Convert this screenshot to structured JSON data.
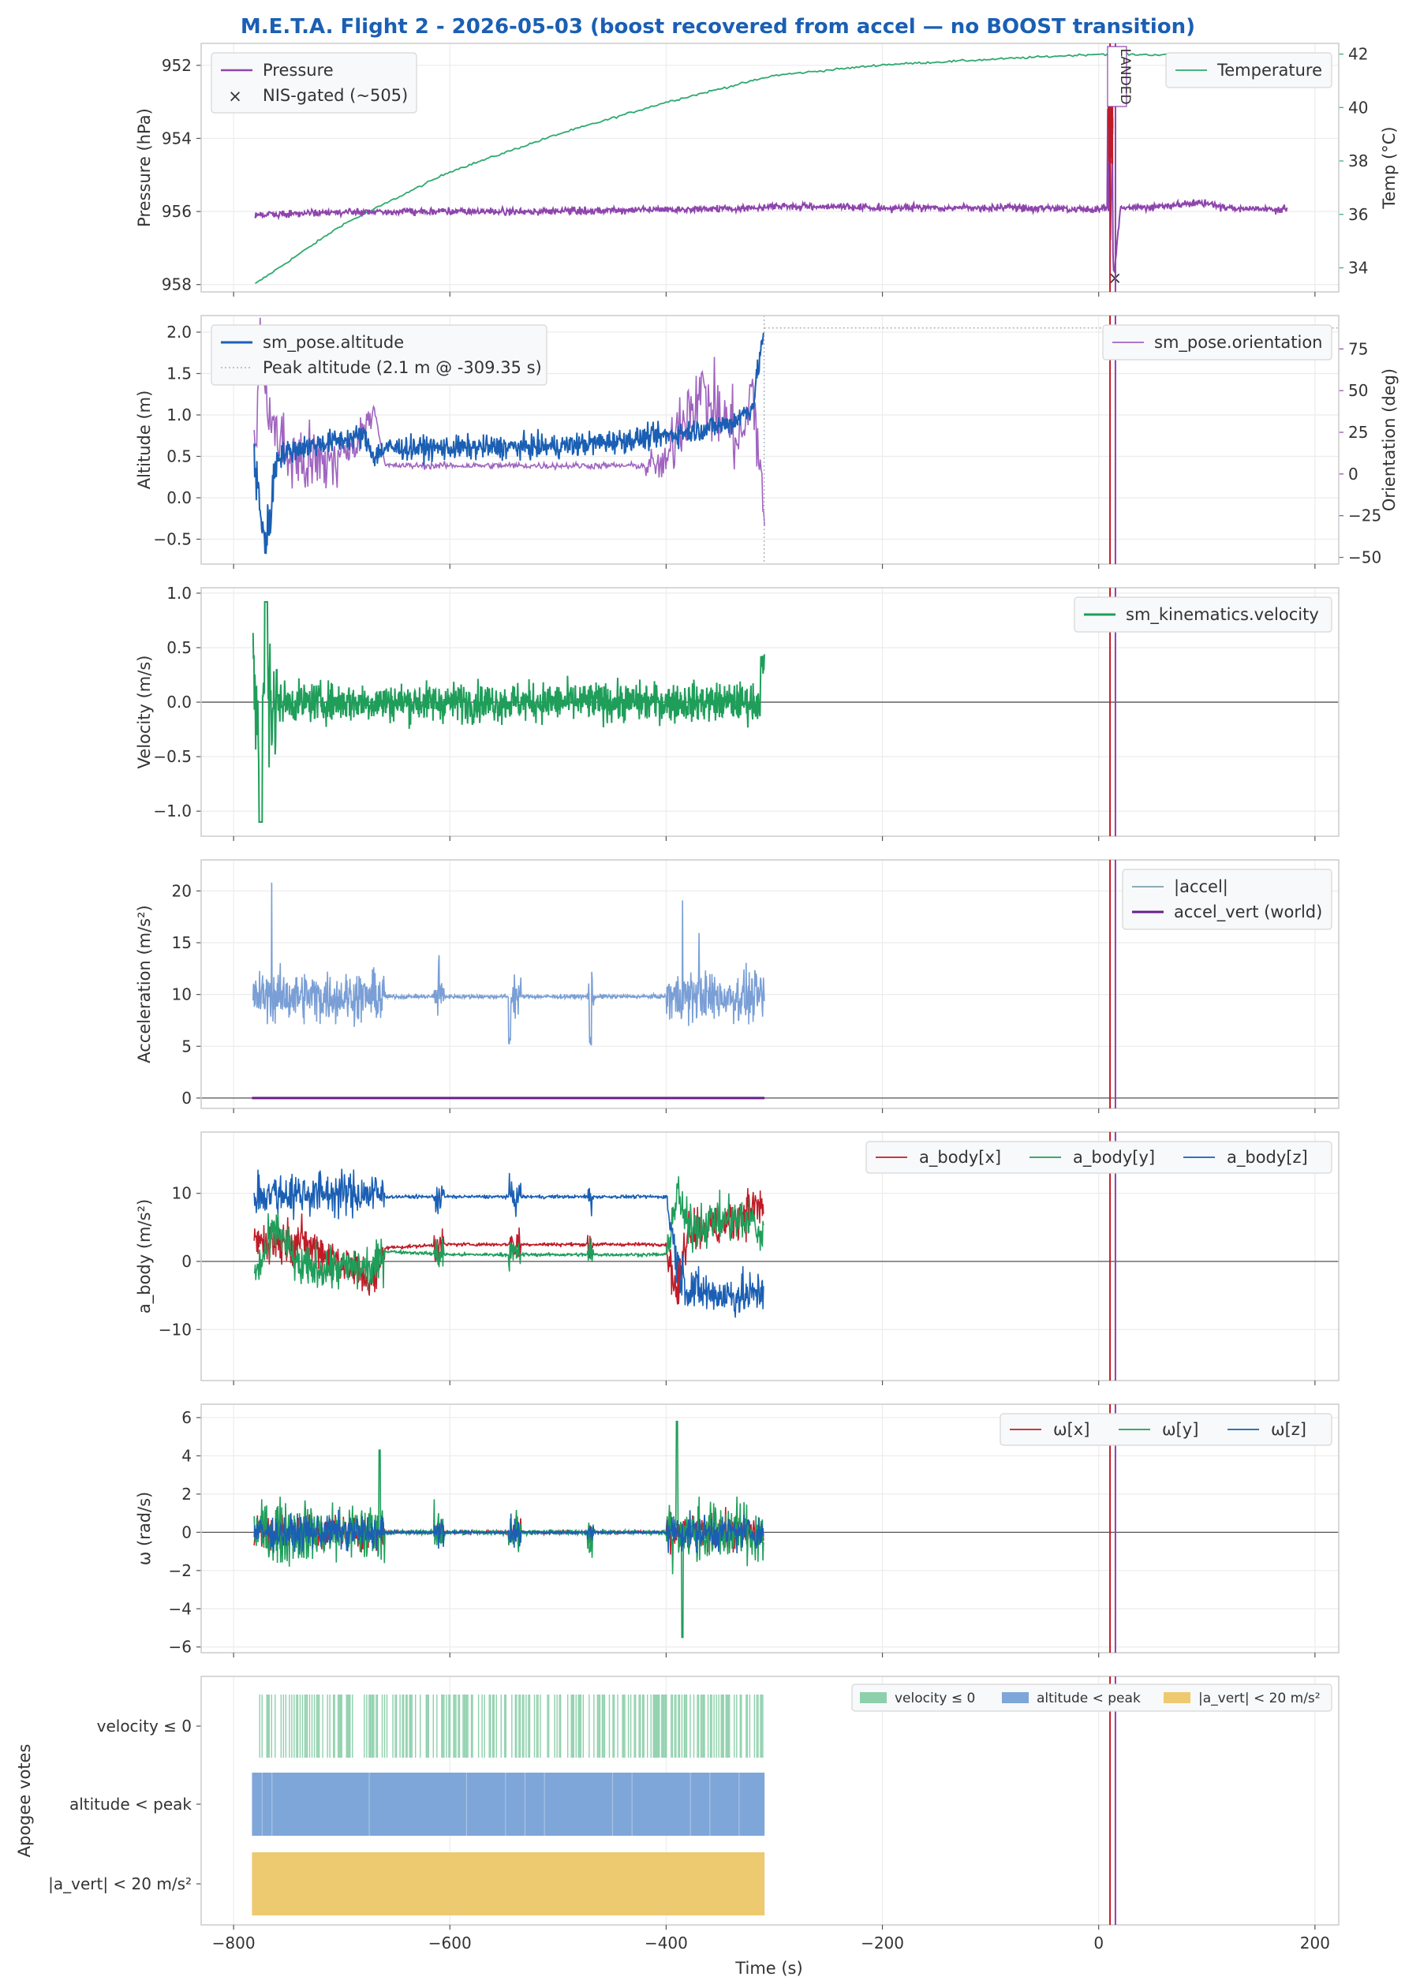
{
  "title": "M.E.T.A. Flight 2 - 2026-05-03  (boost recovered from accel — no BOOST transition)",
  "title_color": "#1a5fb4",
  "x_axis": {
    "label": "Time (s)",
    "range": [
      -830,
      222
    ],
    "ticks": [
      -800,
      -600,
      -400,
      -200,
      0,
      200
    ],
    "tick_labels": [
      "−800",
      "−600",
      "−400",
      "−200",
      "0",
      "200"
    ]
  },
  "event_markers": {
    "x": [
      10.5,
      15.5
    ],
    "colors": [
      "#c01c28",
      "#8e44ad"
    ],
    "landed_label": "LANDED"
  },
  "colors": {
    "pressure": "#8e44ad",
    "temperature": "#2eaa6e",
    "nis": "#c01c28",
    "altitude": "#1a5fb4",
    "orientation": "#a064c0",
    "velocity": "#1f9e5a",
    "accel_mag": "#7a9fd6",
    "accel_vert": "#6a1f8a",
    "red": "#c01c28",
    "green": "#1f9e5a",
    "blue": "#1a5fb4",
    "vote_green": "#8ed0ac",
    "vote_blue": "#7ea6d8",
    "vote_yellow": "#edc96f"
  },
  "chart_data": [
    {
      "id": "pressure",
      "type": "line",
      "ylabel": "Pressure (hPa)",
      "y_inverted": true,
      "ylim": [
        951.4,
        958.2
      ],
      "yticks": [
        952,
        954,
        956,
        958
      ],
      "y2label": "Temp (°C)",
      "y2lim": [
        33.1,
        42.4
      ],
      "y2ticks": [
        34,
        36,
        38,
        40,
        42
      ],
      "series": [
        {
          "name": "Pressure",
          "x": [
            -780,
            -700,
            -600,
            -500,
            -400,
            -310,
            -300,
            -200,
            -100,
            0,
            8,
            12,
            14,
            20,
            60,
            90,
            120,
            175
          ],
          "y": [
            956.1,
            956.0,
            956.0,
            956.0,
            955.95,
            955.9,
            955.85,
            955.9,
            955.9,
            955.95,
            955.9,
            956.2,
            957.8,
            955.9,
            955.85,
            955.75,
            955.9,
            955.95
          ]
        },
        {
          "name": "NIS-gated (~505)",
          "x": [
            15
          ],
          "y": [
            957.8
          ]
        },
        {
          "name": "Temperature",
          "x": [
            -780,
            -700,
            -600,
            -500,
            -400,
            -300,
            -200,
            -100,
            0,
            100,
            175
          ],
          "y": [
            33.4,
            35.6,
            37.6,
            39.0,
            40.2,
            41.2,
            41.6,
            41.8,
            42.0,
            41.95,
            41.8
          ]
        }
      ],
      "legend": [
        "Pressure",
        "NIS-gated (~505)"
      ],
      "legend2": [
        "Temperature"
      ]
    },
    {
      "id": "altitude",
      "type": "line",
      "ylabel": "Altitude (m)",
      "ylim": [
        -0.8,
        2.2
      ],
      "yticks": [
        -0.5,
        0.0,
        0.5,
        1.0,
        1.5,
        2.0
      ],
      "y2label": "Orientation (deg)",
      "y2lim": [
        -54,
        95
      ],
      "y2ticks": [
        -50,
        -25,
        0,
        25,
        50,
        75
      ],
      "series": [
        {
          "name": "sm_pose.altitude",
          "x": [
            -780,
            -770,
            -760,
            -740,
            -700,
            -680,
            -670,
            -660,
            -600,
            -500,
            -450,
            -400,
            -360,
            -340,
            -320,
            -309.35
          ],
          "y": [
            0.3,
            -0.6,
            0.5,
            0.6,
            0.7,
            0.75,
            0.5,
            0.6,
            0.6,
            0.62,
            0.68,
            0.75,
            0.85,
            0.9,
            1.1,
            2.05
          ]
        },
        {
          "name": "Peak altitude (2.1 m @ -309.35 s)",
          "x": [
            -309.35
          ],
          "y": [
            2.05
          ]
        },
        {
          "name": "sm_pose.orientation",
          "x": [
            -780,
            -775,
            -765,
            -750,
            -720,
            -690,
            -670,
            -660,
            -600,
            -500,
            -400,
            -390,
            -370,
            -350,
            -330,
            -320,
            -309.35
          ],
          "y": [
            20,
            80,
            30,
            10,
            5,
            15,
            40,
            5,
            5,
            5,
            5,
            30,
            50,
            35,
            20,
            50,
            -20
          ]
        }
      ],
      "legend": [
        "sm_pose.altitude",
        "Peak altitude (2.1 m @ -309.35 s)"
      ],
      "legend2": [
        "sm_pose.orientation"
      ]
    },
    {
      "id": "velocity",
      "type": "line",
      "ylabel": "Velocity (m/s)",
      "ylim": [
        -1.23,
        1.05
      ],
      "yticks": [
        -1.0,
        -0.5,
        0.0,
        0.5,
        1.0
      ],
      "series": [
        {
          "name": "sm_kinematics.velocity",
          "x": [
            -783,
            -775,
            -770,
            -765,
            -750,
            -700,
            -600,
            -500,
            -400,
            -320,
            -310
          ],
          "y": [
            0.0,
            -1.15,
            0.95,
            0.3,
            0.2,
            0.15,
            0.15,
            0.15,
            0.15,
            0.2,
            0.57
          ]
        }
      ],
      "legend": [
        "sm_kinematics.velocity"
      ]
    },
    {
      "id": "accel",
      "type": "line",
      "ylabel": "Acceleration (m/s²)",
      "ylim": [
        -1.0,
        23.0
      ],
      "yticks": [
        0,
        5,
        10,
        15,
        20
      ],
      "series": [
        {
          "name": "|accel|",
          "x": [
            -780,
            -765,
            -700,
            -670,
            -610,
            -540,
            -470,
            -400,
            -385,
            -310
          ],
          "y": [
            9.8,
            22.0,
            9.8,
            9.8,
            14.0,
            12.0,
            14.5,
            9.8,
            20.0,
            9.8
          ]
        },
        {
          "name": "accel_vert (world)",
          "x": [
            -783,
            -309
          ],
          "y": [
            0.0,
            0.0
          ]
        }
      ],
      "legend": [
        "|accel|",
        "accel_vert (world)"
      ]
    },
    {
      "id": "abody",
      "type": "line",
      "ylabel": "a_body (m/s²)",
      "ylim": [
        -17.5,
        19.0
      ],
      "yticks": [
        -10,
        0,
        10
      ],
      "series": [
        {
          "name": "a_body[x]",
          "x": [
            -780,
            -740,
            -700,
            -670,
            -660,
            -600,
            -400,
            -390,
            -380,
            -350,
            -320,
            -310
          ],
          "y": [
            3,
            3,
            0,
            -3,
            2,
            2.5,
            2.5,
            -5,
            5,
            5,
            8,
            8
          ]
        },
        {
          "name": "a_body[y]",
          "x": [
            -780,
            -760,
            -740,
            -700,
            -670,
            -660,
            -600,
            -400,
            -390,
            -380,
            -350,
            -320,
            -310
          ],
          "y": [
            -2,
            5,
            -1,
            -1,
            -1,
            1.5,
            1,
            1,
            10,
            5,
            6,
            6,
            3
          ]
        },
        {
          "name": "a_body[z]",
          "x": [
            -780,
            -760,
            -700,
            -670,
            -660,
            -600,
            -400,
            -390,
            -380,
            -350,
            -320,
            -310
          ],
          "y": [
            10,
            10,
            10,
            10,
            9.5,
            9.5,
            9.5,
            0,
            -4,
            -5,
            -5,
            -4
          ]
        }
      ],
      "legend": [
        "a_body[x]",
        "a_body[y]",
        "a_body[z]"
      ]
    },
    {
      "id": "omega",
      "type": "line",
      "ylabel": "ω (rad/s)",
      "ylim": [
        -6.3,
        6.7
      ],
      "yticks": [
        -6,
        -4,
        -2,
        0,
        2,
        4,
        6
      ],
      "series": [
        {
          "name": "ω[x]",
          "x": [
            -780,
            -670,
            -610,
            -540,
            -470,
            -400,
            -380,
            -310
          ],
          "y": [
            0,
            0,
            0,
            0,
            0,
            0,
            0,
            0
          ]
        },
        {
          "name": "ω[y]",
          "x": [
            -780,
            -670,
            -610,
            -540,
            -470,
            -400,
            -380,
            -310
          ],
          "y": [
            0,
            0,
            0,
            0,
            0,
            0,
            0,
            0
          ]
        },
        {
          "name": "ω[z]",
          "x": [
            -780,
            -670,
            -610,
            -540,
            -470,
            -400,
            -380,
            -310
          ],
          "y": [
            0,
            0,
            0,
            0,
            0,
            0,
            0,
            0
          ]
        }
      ],
      "legend": [
        "ω[x]",
        "ω[y]",
        "ω[z]"
      ]
    },
    {
      "id": "votes",
      "type": "bar",
      "ylabel": "Apogee votes",
      "categories": [
        "velocity ≤ 0",
        "altitude < peak",
        "|a_vert| < 20 m/s²"
      ],
      "series": [
        {
          "name": "velocity ≤ 0",
          "x_start": -783,
          "x_end": -309,
          "coverage": "intermittent"
        },
        {
          "name": "altitude < peak",
          "x_start": -783,
          "x_end": -309,
          "coverage": "near-continuous"
        },
        {
          "name": "|a_vert| < 20 m/s²",
          "x_start": -783,
          "x_end": -309,
          "coverage": "continuous"
        }
      ],
      "legend": [
        "velocity ≤ 0",
        "altitude < peak",
        "|a_vert| < 20 m/s²"
      ]
    }
  ]
}
